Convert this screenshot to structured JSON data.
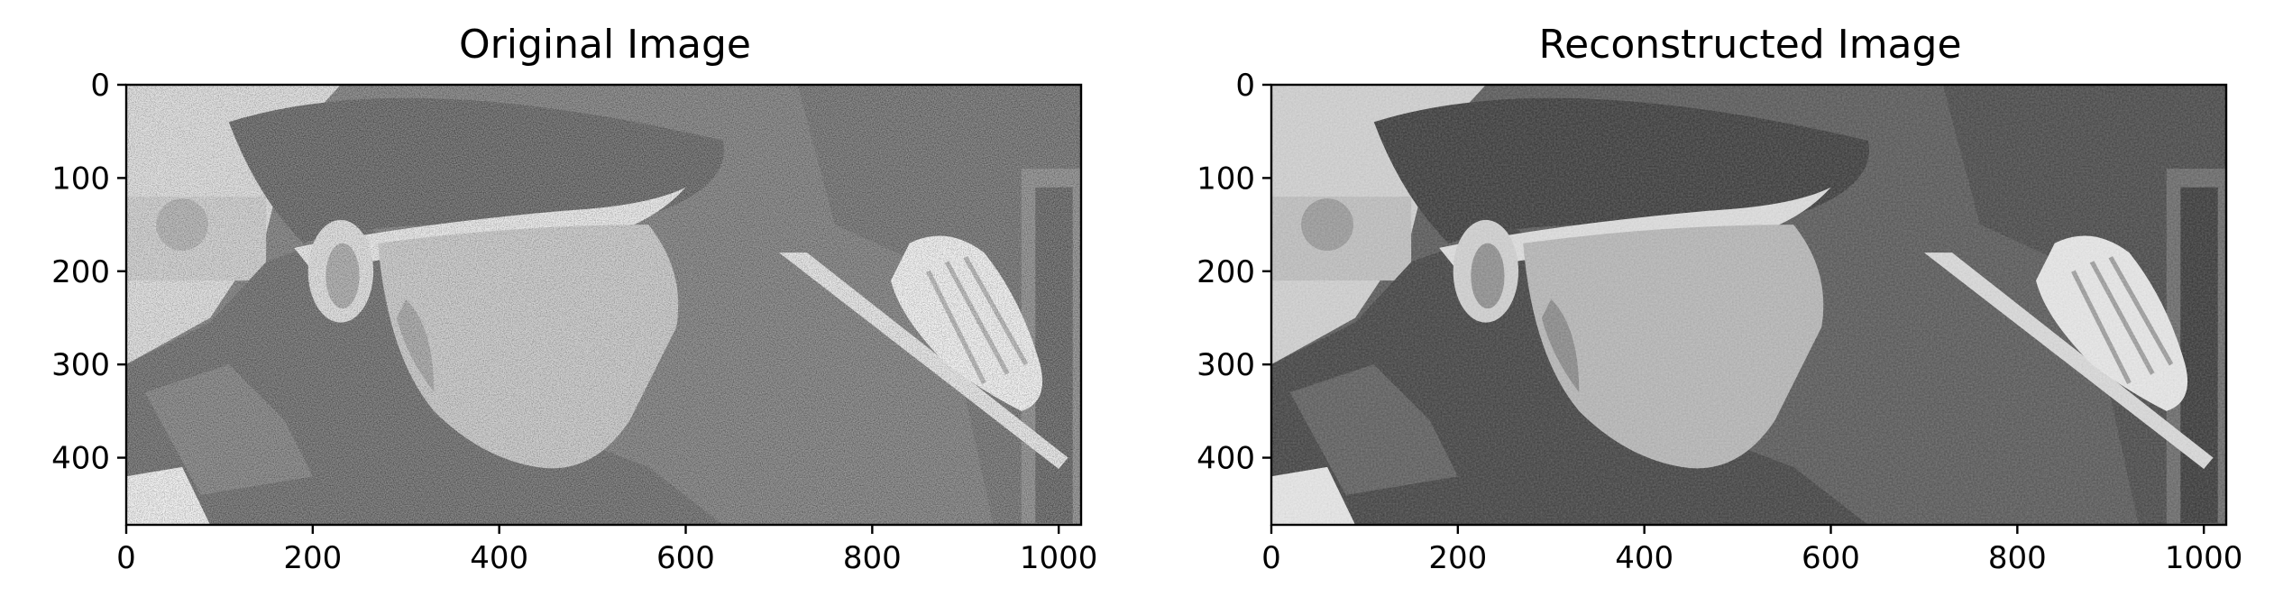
{
  "chart_data": [
    {
      "type": "image",
      "title": "Original Image",
      "image_content": "grayscale halftone photo of a man in a cap looking down at a tool held in his hand",
      "xlim": [
        0,
        1024
      ],
      "ylim": [
        472,
        0
      ],
      "xticks": [
        0,
        200,
        400,
        600,
        800,
        1000
      ],
      "yticks": [
        0,
        100,
        200,
        300,
        400
      ],
      "noise": "strong halftone dot pattern"
    },
    {
      "type": "image",
      "title": "Reconstructed Image",
      "image_content": "grayscale photo of the same man in a cap holding a tool, smoother tones",
      "xlim": [
        0,
        1024
      ],
      "ylim": [
        472,
        0
      ],
      "xticks": [
        0,
        200,
        400,
        600,
        800,
        1000
      ],
      "yticks": [
        0,
        100,
        200,
        300,
        400
      ],
      "noise": "mild residual texture"
    }
  ]
}
